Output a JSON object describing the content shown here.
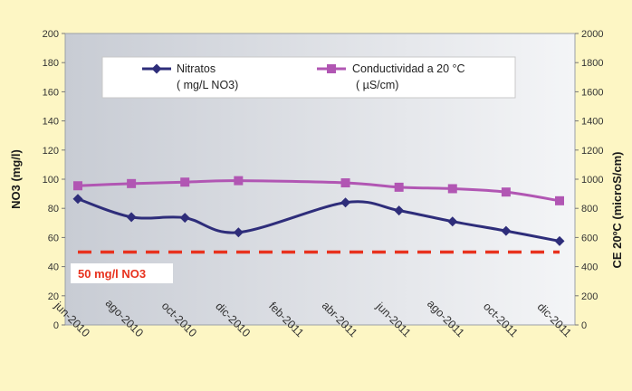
{
  "chart_data": {
    "type": "line",
    "categories": [
      "jun-2010",
      "ago-2010",
      "oct-2010",
      "dic-2010",
      "feb-2011",
      "abr-2011",
      "jun-2011",
      "ago-2011",
      "oct-2011",
      "dic-2011"
    ],
    "x_positions": [
      0,
      2,
      4,
      6,
      8,
      10,
      12,
      14,
      16,
      18
    ],
    "series": [
      {
        "name": "Nitratos",
        "legend_line2": "( mg/L NO3)",
        "axis": "left",
        "color": "#2e2d7a",
        "marker": "diamond",
        "points": [
          [
            0,
            86.5
          ],
          [
            2,
            74
          ],
          [
            4,
            73.5
          ],
          [
            6,
            63.5
          ],
          [
            10,
            84
          ],
          [
            12,
            78.5
          ],
          [
            14,
            71
          ],
          [
            16,
            64.5
          ],
          [
            18,
            57.5
          ]
        ]
      },
      {
        "name": "Conductividad a 20 °C",
        "legend_line2": "( µS/cm)",
        "axis": "right",
        "color": "#b156b3",
        "marker": "square",
        "points": [
          [
            0,
            955
          ],
          [
            2,
            970
          ],
          [
            4,
            980
          ],
          [
            6,
            990
          ],
          [
            10,
            975
          ],
          [
            12,
            945
          ],
          [
            14,
            935
          ],
          [
            16,
            912
          ],
          [
            18,
            852
          ]
        ]
      }
    ],
    "reference_line": {
      "value": 50,
      "axis": "left",
      "color": "#e8321e",
      "style": "dashed"
    },
    "annotation": {
      "text": "50 mg/l NO3",
      "color": "#e8321e"
    },
    "yleft": {
      "label": "NO3 (mg/l)",
      "min": 0,
      "max": 200,
      "ticks": [
        0,
        20,
        40,
        60,
        80,
        100,
        120,
        140,
        160,
        180,
        200
      ]
    },
    "yright": {
      "label": "CE 20ºC (microS/cm)",
      "min": 0,
      "max": 2000,
      "ticks": [
        0,
        200,
        400,
        600,
        800,
        1000,
        1200,
        1400,
        1600,
        1800,
        2000
      ]
    },
    "legend_placement": "top-center",
    "grid": false,
    "colors": {
      "background": "#fdf6c4",
      "plot_bg_start": "#c8ccd4",
      "plot_bg_end": "#f4f5f7"
    }
  }
}
